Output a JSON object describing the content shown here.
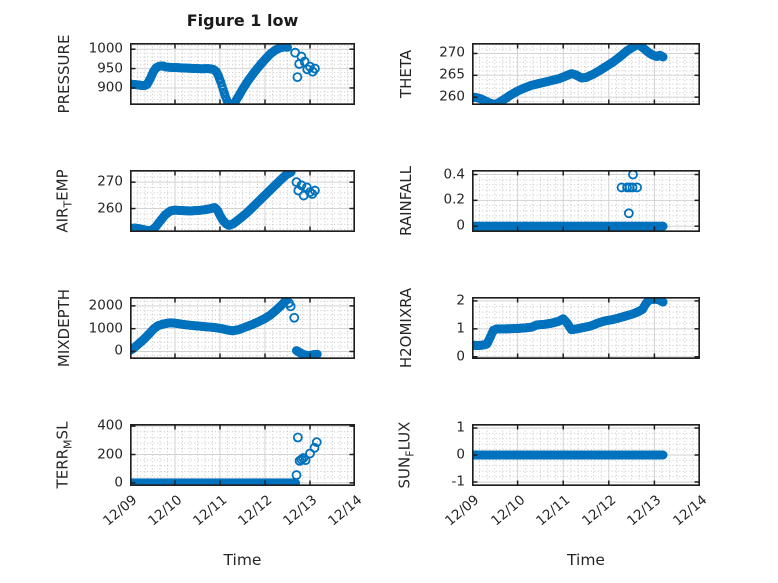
{
  "title": "Figure 1 low",
  "xlabel": "Time",
  "marker": {
    "shape": "circle-open",
    "color": "#0072BD"
  },
  "colors": {
    "accent": "#0072BD",
    "axis_box": "#1f1f1f",
    "grid_major": "#d2d2d2",
    "grid_minor": "#c6c6c6",
    "text": "#262626"
  },
  "x_axis": {
    "lim": [
      0,
      5
    ],
    "unit": "days since 12/09",
    "tick_values": [
      0,
      1,
      2,
      3,
      4,
      5
    ],
    "tick_labels": [
      "12/09",
      "12/10",
      "12/11",
      "12/12",
      "12/13",
      "12/14"
    ],
    "minor_divisions_per_day": 6
  },
  "chart_data": [
    {
      "id": "pressure",
      "type": "scatter",
      "ylabel_parts": [
        {
          "text": "PRESSURE"
        }
      ],
      "ylim": [
        856,
        1016
      ],
      "yticks": [
        900,
        950,
        1000
      ],
      "ytick_labels": [
        "900",
        "950",
        "1000"
      ],
      "series": [
        {
          "style": "track",
          "points": [
            [
              0,
              910
            ],
            [
              0.08,
              909
            ],
            [
              0.17,
              908
            ],
            [
              0.25,
              906.5
            ],
            [
              0.32,
              906
            ],
            [
              0.38,
              909
            ],
            [
              0.45,
              924
            ],
            [
              0.52,
              942
            ],
            [
              0.58,
              952
            ],
            [
              0.65,
              956
            ],
            [
              0.72,
              957
            ],
            [
              0.8,
              954
            ],
            [
              0.92,
              953
            ],
            [
              1.05,
              952.5
            ],
            [
              1.2,
              951.5
            ],
            [
              1.4,
              950.5
            ],
            [
              1.6,
              949.5
            ],
            [
              1.75,
              950
            ],
            [
              1.85,
              948
            ],
            [
              1.92,
              942
            ],
            [
              1.97,
              930
            ],
            [
              2.02,
              914
            ],
            [
              2.07,
              896
            ],
            [
              2.12,
              878
            ],
            [
              2.17,
              863
            ],
            [
              2.22,
              853
            ],
            [
              2.27,
              854
            ],
            [
              2.33,
              863
            ],
            [
              2.42,
              880
            ],
            [
              2.52,
              900
            ],
            [
              2.62,
              918
            ],
            [
              2.72,
              934
            ],
            [
              2.82,
              949
            ],
            [
              2.92,
              963
            ],
            [
              3.02,
              976
            ],
            [
              3.12,
              988
            ],
            [
              3.22,
              997
            ],
            [
              3.32,
              1003
            ],
            [
              3.42,
              1006
            ],
            [
              3.5,
              1005
            ]
          ]
        },
        {
          "style": "outliers",
          "points": [
            [
              3.67,
              991
            ],
            [
              3.72,
              928
            ],
            [
              3.76,
              962
            ],
            [
              3.81,
              981
            ],
            [
              3.88,
              968
            ],
            [
              3.94,
              948
            ],
            [
              4.0,
              955
            ],
            [
              4.06,
              942
            ],
            [
              4.11,
              950
            ]
          ]
        }
      ]
    },
    {
      "id": "theta",
      "type": "scatter",
      "ylabel_parts": [
        {
          "text": "THETA"
        }
      ],
      "ylim": [
        258.2,
        272.4
      ],
      "yticks": [
        260,
        265,
        270
      ],
      "ytick_labels": [
        "260",
        "265",
        "270"
      ],
      "series": [
        {
          "style": "track",
          "points": [
            [
              0,
              260
            ],
            [
              0.1,
              259.9
            ],
            [
              0.2,
              259.6
            ],
            [
              0.3,
              259.1
            ],
            [
              0.4,
              258.6
            ],
            [
              0.5,
              258.3
            ],
            [
              0.6,
              258.8
            ],
            [
              0.72,
              259.6
            ],
            [
              0.85,
              260.5
            ],
            [
              1.0,
              261.4
            ],
            [
              1.15,
              262.1
            ],
            [
              1.3,
              262.7
            ],
            [
              1.5,
              263.2
            ],
            [
              1.7,
              263.7
            ],
            [
              1.9,
              264.2
            ],
            [
              2.05,
              264.8
            ],
            [
              2.18,
              265.4
            ],
            [
              2.28,
              265.1
            ],
            [
              2.4,
              264.4
            ],
            [
              2.5,
              264.5
            ],
            [
              2.65,
              265.2
            ],
            [
              2.8,
              266.1
            ],
            [
              2.95,
              267.1
            ],
            [
              3.1,
              268.1
            ],
            [
              3.25,
              269.3
            ],
            [
              3.4,
              270.6
            ],
            [
              3.55,
              271.6
            ],
            [
              3.65,
              272.1
            ],
            [
              3.75,
              271.3
            ],
            [
              3.85,
              270.4
            ],
            [
              3.95,
              269.7
            ],
            [
              4.05,
              269.3
            ],
            [
              4.12,
              269.6
            ],
            [
              4.19,
              269.2
            ]
          ]
        }
      ]
    },
    {
      "id": "air_temp",
      "type": "scatter",
      "ylabel_parts": [
        {
          "text": "AIR"
        },
        {
          "text": "T",
          "sub": true
        },
        {
          "text": "EMP"
        }
      ],
      "ylim": [
        251.1,
        274.6
      ],
      "yticks": [
        260,
        270
      ],
      "ytick_labels": [
        "260",
        "270"
      ],
      "series": [
        {
          "style": "track",
          "points": [
            [
              0,
              252.4
            ],
            [
              0.12,
              252.6
            ],
            [
              0.25,
              252.2
            ],
            [
              0.35,
              251.8
            ],
            [
              0.45,
              251.5
            ],
            [
              0.55,
              252.6
            ],
            [
              0.66,
              255.0
            ],
            [
              0.78,
              257.6
            ],
            [
              0.9,
              259.1
            ],
            [
              1.0,
              259.4
            ],
            [
              1.15,
              259.2
            ],
            [
              1.35,
              259.1
            ],
            [
              1.55,
              259.3
            ],
            [
              1.75,
              259.8
            ],
            [
              1.88,
              260.4
            ],
            [
              1.95,
              259.2
            ],
            [
              2.0,
              257.4
            ],
            [
              2.06,
              255.6
            ],
            [
              2.13,
              254.3
            ],
            [
              2.2,
              253.6
            ],
            [
              2.3,
              254.3
            ],
            [
              2.45,
              256.3
            ],
            [
              2.6,
              258.4
            ],
            [
              2.75,
              260.9
            ],
            [
              2.9,
              263.4
            ],
            [
              3.05,
              265.9
            ],
            [
              3.2,
              268.4
            ],
            [
              3.35,
              270.9
            ],
            [
              3.48,
              272.9
            ],
            [
              3.58,
              273.8
            ]
          ]
        },
        {
          "style": "outliers",
          "points": [
            [
              3.7,
              270.0
            ],
            [
              3.74,
              266.8
            ],
            [
              3.81,
              268.8
            ],
            [
              3.86,
              264.9
            ],
            [
              3.93,
              268.0
            ],
            [
              4.0,
              266.2
            ],
            [
              4.05,
              265.5
            ],
            [
              4.11,
              266.8
            ]
          ]
        }
      ]
    },
    {
      "id": "rainfall",
      "type": "scatter",
      "ylabel_parts": [
        {
          "text": "RAINFALL"
        }
      ],
      "ylim": [
        -0.045,
        0.435
      ],
      "yticks": [
        0,
        0.2,
        0.4
      ],
      "ytick_labels": [
        "0",
        "0.2",
        "0.4"
      ],
      "series": [
        {
          "style": "track",
          "points": [
            [
              0,
              0
            ],
            [
              4.19,
              0
            ]
          ]
        },
        {
          "style": "outliers",
          "points": [
            [
              3.28,
              0.3
            ],
            [
              3.4,
              0.3
            ],
            [
              3.44,
              0.1
            ],
            [
              3.46,
              0.3
            ],
            [
              3.52,
              0.3
            ],
            [
              3.53,
              0.4
            ],
            [
              3.62,
              0.3
            ]
          ]
        }
      ]
    },
    {
      "id": "mixdepth",
      "type": "scatter",
      "ylabel_parts": [
        {
          "text": "MIXDEPTH"
        }
      ],
      "ylim": [
        -330,
        2390
      ],
      "yticks": [
        0,
        1000,
        2000
      ],
      "ytick_labels": [
        "0",
        "1000",
        "2000"
      ],
      "series": [
        {
          "style": "track",
          "points": [
            [
              0,
              50
            ],
            [
              0.07,
              130
            ],
            [
              0.15,
              260
            ],
            [
              0.23,
              400
            ],
            [
              0.32,
              560
            ],
            [
              0.42,
              760
            ],
            [
              0.52,
              980
            ],
            [
              0.62,
              1130
            ],
            [
              0.75,
              1210
            ],
            [
              0.9,
              1260
            ],
            [
              1.05,
              1230
            ],
            [
              1.2,
              1180
            ],
            [
              1.38,
              1140
            ],
            [
              1.55,
              1110
            ],
            [
              1.72,
              1080
            ],
            [
              1.88,
              1050
            ],
            [
              2.02,
              1010
            ],
            [
              2.15,
              950
            ],
            [
              2.28,
              905
            ],
            [
              2.42,
              960
            ],
            [
              2.55,
              1060
            ],
            [
              2.7,
              1170
            ],
            [
              2.85,
              1300
            ],
            [
              3.0,
              1450
            ],
            [
              3.12,
              1600
            ],
            [
              3.24,
              1800
            ],
            [
              3.35,
              2000
            ],
            [
              3.43,
              2160
            ],
            [
              3.48,
              2260
            ]
          ]
        },
        {
          "style": "outliers",
          "points": [
            [
              3.53,
              2130
            ],
            [
              3.57,
              1980
            ],
            [
              3.65,
              1480
            ]
          ]
        },
        {
          "style": "track",
          "points": [
            [
              3.7,
              40
            ],
            [
              3.78,
              -60
            ],
            [
              3.88,
              -150
            ],
            [
              3.98,
              -185
            ],
            [
              4.08,
              -140
            ],
            [
              4.16,
              -120
            ]
          ]
        }
      ]
    },
    {
      "id": "h2omixra",
      "type": "scatter",
      "ylabel_parts": [
        {
          "text": "H2OMIXRA"
        }
      ],
      "ylim": [
        -0.08,
        2.14
      ],
      "yticks": [
        0,
        1,
        2
      ],
      "ytick_labels": [
        "0",
        "1",
        "2"
      ],
      "series": [
        {
          "style": "track",
          "points": [
            [
              0,
              0.42
            ],
            [
              0.12,
              0.4
            ],
            [
              0.25,
              0.42
            ],
            [
              0.33,
              0.46
            ],
            [
              0.4,
              0.7
            ],
            [
              0.47,
              0.95
            ],
            [
              0.55,
              1.0
            ],
            [
              0.75,
              1.0
            ],
            [
              0.95,
              1.01
            ],
            [
              1.15,
              1.03
            ],
            [
              1.31,
              1.06
            ],
            [
              1.42,
              1.14
            ],
            [
              1.58,
              1.16
            ],
            [
              1.74,
              1.2
            ],
            [
              1.9,
              1.27
            ],
            [
              2.0,
              1.36
            ],
            [
              2.08,
              1.22
            ],
            [
              2.18,
              0.97
            ],
            [
              2.3,
              1.0
            ],
            [
              2.45,
              1.05
            ],
            [
              2.6,
              1.1
            ],
            [
              2.75,
              1.2
            ],
            [
              2.9,
              1.28
            ],
            [
              3.05,
              1.32
            ],
            [
              3.2,
              1.38
            ],
            [
              3.35,
              1.45
            ],
            [
              3.5,
              1.52
            ],
            [
              3.63,
              1.6
            ],
            [
              3.74,
              1.7
            ],
            [
              3.82,
              1.92
            ],
            [
              3.9,
              2.05
            ],
            [
              4.0,
              2.06
            ],
            [
              4.1,
              2.05
            ],
            [
              4.15,
              1.99
            ],
            [
              4.19,
              1.96
            ]
          ]
        }
      ]
    },
    {
      "id": "terr_msl",
      "type": "scatter",
      "ylabel_parts": [
        {
          "text": "TERR"
        },
        {
          "text": "M",
          "sub": true
        },
        {
          "text": "SL"
        }
      ],
      "ylim": [
        -22,
        415
      ],
      "yticks": [
        0,
        200,
        400
      ],
      "ytick_labels": [
        "0",
        "200",
        "400"
      ],
      "series": [
        {
          "style": "track",
          "points": [
            [
              0,
              0
            ],
            [
              3.68,
              0
            ]
          ]
        },
        {
          "style": "outliers",
          "points": [
            [
              3.7,
              55
            ],
            [
              3.73,
              320
            ],
            [
              3.77,
              155
            ],
            [
              3.81,
              165
            ],
            [
              3.85,
              175
            ],
            [
              3.9,
              160
            ],
            [
              4.0,
              207
            ],
            [
              4.1,
              247
            ],
            [
              4.15,
              287
            ]
          ]
        }
      ]
    },
    {
      "id": "sun_flux",
      "type": "scatter",
      "ylabel_parts": [
        {
          "text": "SUN"
        },
        {
          "text": "F",
          "sub": true
        },
        {
          "text": "LUX"
        }
      ],
      "ylim": [
        -1.15,
        1.15
      ],
      "yticks": [
        -1,
        0,
        1
      ],
      "ytick_labels": [
        "-1",
        "0",
        "1"
      ],
      "series": [
        {
          "style": "track",
          "points": [
            [
              0,
              0
            ],
            [
              4.19,
              0
            ]
          ]
        }
      ]
    }
  ]
}
